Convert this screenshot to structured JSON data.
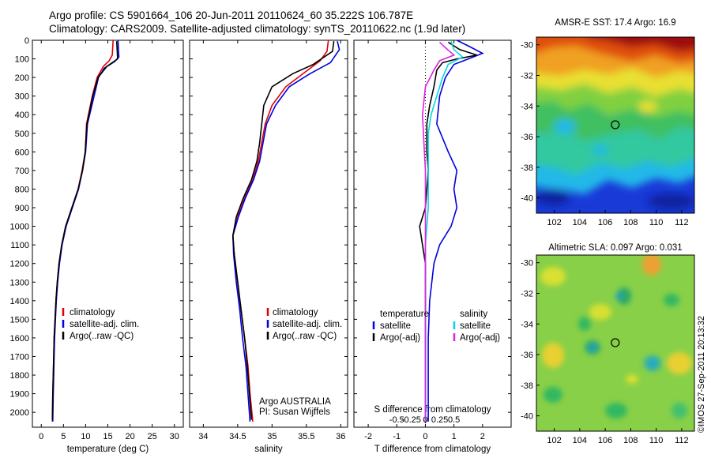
{
  "header": {
    "line1": "Argo profile: CS 5901664_106 20-Jun-2011 20110624_60 35.222S 106.787E",
    "line2": "Climatology: CARS2009. Satellite-adjusted climatology: synTS_20110622.nc (1.9d later)"
  },
  "colors": {
    "climatology": "#e00000",
    "satellite": "#0000e0",
    "argo": "#000000",
    "sat_salinity": "#00d8e0",
    "argo_salinity": "#e020e0"
  },
  "credit": "©IMOS 27-Sep-2011 20:13:32",
  "chart_data": [
    {
      "type": "line",
      "xlabel": "temperature (deg C)",
      "xlim": [
        -2,
        32
      ],
      "xticks": [
        0,
        5,
        10,
        15,
        20,
        25,
        30
      ],
      "ylim": [
        0,
        2080
      ],
      "yticks": [
        0,
        100,
        200,
        300,
        400,
        500,
        600,
        700,
        800,
        900,
        1000,
        1100,
        1200,
        1300,
        1400,
        1500,
        1600,
        1700,
        1800,
        1900,
        2000
      ],
      "legend": [
        "climatology",
        "satellite-adj. clim.",
        "Argo(..raw -QC)"
      ],
      "series": [
        {
          "name": "climatology",
          "color": "#e00000",
          "points": [
            [
              16.2,
              0
            ],
            [
              16.0,
              80
            ],
            [
              15.3,
              110
            ],
            [
              14.0,
              140
            ],
            [
              12.6,
              200
            ],
            [
              11.5,
              300
            ],
            [
              10.2,
              450
            ],
            [
              9.9,
              600
            ],
            [
              9.2,
              700
            ],
            [
              8.3,
              800
            ],
            [
              6.9,
              900
            ],
            [
              5.5,
              1000
            ],
            [
              4.6,
              1100
            ],
            [
              4.0,
              1200
            ],
            [
              3.6,
              1300
            ],
            [
              3.3,
              1400
            ],
            [
              3.1,
              1500
            ],
            [
              2.9,
              1600
            ],
            [
              2.8,
              1700
            ],
            [
              2.7,
              1800
            ],
            [
              2.6,
              1900
            ],
            [
              2.5,
              2050
            ]
          ]
        },
        {
          "name": "satellite-adj. clim.",
          "color": "#0000e0",
          "points": [
            [
              17.3,
              0
            ],
            [
              17.5,
              90
            ],
            [
              16.5,
              115
            ],
            [
              14.2,
              150
            ],
            [
              12.9,
              200
            ],
            [
              11.9,
              300
            ],
            [
              10.4,
              450
            ],
            [
              10.0,
              600
            ],
            [
              9.3,
              700
            ],
            [
              8.4,
              800
            ],
            [
              7.0,
              900
            ],
            [
              5.6,
              1000
            ],
            [
              4.7,
              1100
            ],
            [
              4.1,
              1200
            ],
            [
              3.7,
              1300
            ],
            [
              3.4,
              1400
            ],
            [
              3.2,
              1500
            ],
            [
              3.0,
              1600
            ],
            [
              2.9,
              1700
            ],
            [
              2.8,
              1800
            ],
            [
              2.7,
              1900
            ],
            [
              2.6,
              2050
            ]
          ]
        },
        {
          "name": "Argo(..raw -QC)",
          "color": "#000000",
          "points": [
            [
              17.0,
              5
            ],
            [
              17.2,
              100
            ],
            [
              14.8,
              140
            ],
            [
              12.8,
              200
            ],
            [
              11.6,
              300
            ],
            [
              10.3,
              450
            ],
            [
              9.9,
              600
            ],
            [
              9.3,
              700
            ],
            [
              8.3,
              800
            ],
            [
              6.9,
              900
            ],
            [
              5.5,
              1000
            ],
            [
              4.6,
              1100
            ],
            [
              4.0,
              1200
            ],
            [
              3.6,
              1300
            ],
            [
              3.3,
              1400
            ],
            [
              3.1,
              1500
            ],
            [
              2.9,
              1600
            ],
            [
              2.8,
              1700
            ],
            [
              2.7,
              1800
            ],
            [
              2.6,
              1900
            ],
            [
              2.5,
              2040
            ]
          ]
        }
      ]
    },
    {
      "type": "line",
      "xlabel": "salinity",
      "xlim": [
        33.8,
        36.1
      ],
      "xticks": [
        34,
        34.5,
        35,
        35.5,
        36
      ],
      "ylim": [
        0,
        2080
      ],
      "legend": [
        "climatology",
        "satellite-adj. clim.",
        "Argo(..raw -QC)"
      ],
      "annotation": [
        "Argo AUSTRALIA",
        "PI: Susan Wijffels"
      ],
      "series": [
        {
          "name": "climatology",
          "color": "#e00000",
          "points": [
            [
              35.82,
              0
            ],
            [
              35.8,
              60
            ],
            [
              35.7,
              110
            ],
            [
              35.45,
              180
            ],
            [
              35.2,
              250
            ],
            [
              35.0,
              350
            ],
            [
              34.9,
              450
            ],
            [
              34.85,
              550
            ],
            [
              34.8,
              650
            ],
            [
              34.72,
              750
            ],
            [
              34.6,
              850
            ],
            [
              34.5,
              950
            ],
            [
              34.43,
              1050
            ],
            [
              34.45,
              1150
            ],
            [
              34.5,
              1300
            ],
            [
              34.55,
              1450
            ],
            [
              34.6,
              1600
            ],
            [
              34.65,
              1750
            ],
            [
              34.68,
              1900
            ],
            [
              34.72,
              2050
            ]
          ]
        },
        {
          "name": "satellite-adj. clim.",
          "color": "#0000e0",
          "points": [
            [
              35.95,
              5
            ],
            [
              35.98,
              50
            ],
            [
              35.85,
              120
            ],
            [
              35.55,
              180
            ],
            [
              35.25,
              250
            ],
            [
              35.05,
              350
            ],
            [
              34.92,
              450
            ],
            [
              34.87,
              550
            ],
            [
              34.82,
              650
            ],
            [
              34.73,
              750
            ],
            [
              34.61,
              850
            ],
            [
              34.51,
              950
            ],
            [
              34.43,
              1050
            ],
            [
              34.44,
              1150
            ],
            [
              34.48,
              1300
            ],
            [
              34.53,
              1450
            ],
            [
              34.57,
              1600
            ],
            [
              34.62,
              1750
            ],
            [
              34.65,
              1900
            ],
            [
              34.68,
              2050
            ]
          ]
        },
        {
          "name": "Argo(..raw -QC)",
          "color": "#000000",
          "points": [
            [
              35.9,
              5
            ],
            [
              35.88,
              60
            ],
            [
              35.6,
              130
            ],
            [
              35.3,
              180
            ],
            [
              35.0,
              250
            ],
            [
              34.88,
              350
            ],
            [
              34.85,
              450
            ],
            [
              34.82,
              550
            ],
            [
              34.78,
              650
            ],
            [
              34.7,
              750
            ],
            [
              34.58,
              850
            ],
            [
              34.48,
              950
            ],
            [
              34.43,
              1050
            ],
            [
              34.45,
              1150
            ],
            [
              34.5,
              1300
            ],
            [
              34.55,
              1450
            ],
            [
              34.6,
              1600
            ],
            [
              34.64,
              1750
            ],
            [
              34.67,
              1900
            ],
            [
              34.7,
              2040
            ]
          ]
        }
      ]
    },
    {
      "type": "line",
      "xlabel": "T difference from climatology",
      "xlabel_top": "S difference from climatology",
      "xlim": [
        -2.5,
        3
      ],
      "xticks": [
        -2,
        -1,
        0,
        1,
        2
      ],
      "xticks_top": [
        {
          "value": -1,
          "label": "-0.5"
        },
        {
          "value": -0.5,
          "label": "-0.25"
        },
        {
          "value": 0,
          "label": "0"
        },
        {
          "value": 0.5,
          "label": "0.25"
        },
        {
          "value": 1,
          "label": "0.5"
        }
      ],
      "ylim": [
        0,
        2080
      ],
      "legend": {
        "temperature": {
          "title": "temperature",
          "items": [
            "satellite",
            "Argo(-adj)"
          ]
        },
        "salinity": {
          "title": "salinity",
          "items": [
            "satellite",
            "Argo(-adj)"
          ]
        }
      },
      "series": [
        {
          "name": "temperature satellite",
          "color": "#0000e0",
          "points": [
            [
              1.1,
              0
            ],
            [
              1.5,
              30
            ],
            [
              2.0,
              70
            ],
            [
              1.5,
              100
            ],
            [
              1.0,
              130
            ],
            [
              0.7,
              200
            ],
            [
              0.5,
              300
            ],
            [
              0.4,
              450
            ],
            [
              0.8,
              600
            ],
            [
              1.1,
              700
            ],
            [
              1.0,
              800
            ],
            [
              1.1,
              900
            ],
            [
              0.9,
              1000
            ],
            [
              0.5,
              1100
            ],
            [
              0.3,
              1200
            ],
            [
              0.15,
              1400
            ],
            [
              0.1,
              1600
            ],
            [
              0.1,
              1800
            ],
            [
              0.1,
              2050
            ]
          ]
        },
        {
          "name": "temperature Argo(-adj)",
          "color": "#000000",
          "points": [
            [
              0.8,
              10
            ],
            [
              1.2,
              50
            ],
            [
              1.8,
              80
            ],
            [
              1.1,
              100
            ],
            [
              0.6,
              120
            ],
            [
              0.4,
              160
            ],
            [
              0.3,
              250
            ],
            [
              0.15,
              350
            ],
            [
              0.05,
              450
            ],
            [
              0.05,
              600
            ],
            [
              0.1,
              700
            ],
            [
              0.05,
              800
            ],
            [
              0.0,
              900
            ],
            [
              -0.2,
              1000
            ],
            [
              -0.1,
              1100
            ],
            [
              0.0,
              1200
            ],
            [
              0.0,
              1400
            ],
            [
              0.0,
              1600
            ],
            [
              0.0,
              1800
            ],
            [
              0.0,
              2050
            ]
          ]
        },
        {
          "name": "salinity satellite",
          "color": "#00d8e0",
          "points": [
            [
              0.9,
              5
            ],
            [
              1.0,
              50
            ],
            [
              1.3,
              90
            ],
            [
              0.8,
              130
            ],
            [
              0.6,
              200
            ],
            [
              0.4,
              300
            ],
            [
              0.2,
              400
            ],
            [
              0.1,
              500
            ],
            [
              0.1,
              700
            ],
            [
              0.1,
              900
            ],
            [
              0.0,
              1100
            ],
            [
              0.0,
              1300
            ],
            [
              0.0,
              1600
            ],
            [
              0.0,
              1800
            ],
            [
              0.0,
              2050
            ]
          ]
        },
        {
          "name": "salinity Argo(-adj)",
          "color": "#e020e0",
          "points": [
            [
              0.5,
              10
            ],
            [
              0.7,
              40
            ],
            [
              1.0,
              80
            ],
            [
              0.5,
              110
            ],
            [
              0.3,
              160
            ],
            [
              0.0,
              250
            ],
            [
              -0.1,
              400
            ],
            [
              -0.05,
              550
            ],
            [
              0.0,
              700
            ],
            [
              0.0,
              900
            ],
            [
              0.0,
              1100
            ],
            [
              0.0,
              1300
            ],
            [
              0.0,
              1600
            ],
            [
              0.0,
              1800
            ],
            [
              0.0,
              2050
            ]
          ]
        }
      ]
    },
    {
      "type": "heatmap",
      "title": "AMSR-E SST: 17.4 Argo: 16.9",
      "xlim": [
        100.6,
        113
      ],
      "xticks": [
        102,
        104,
        106,
        108,
        110,
        112
      ],
      "ylim": [
        -41,
        -29.5
      ],
      "yticks": [
        -30,
        -32,
        -34,
        -36,
        -38,
        -40
      ],
      "marker": [
        106.787,
        -35.222
      ]
    },
    {
      "type": "heatmap",
      "title": "Altimetric SLA: 0.097 Argo: 0.031",
      "xlim": [
        100.6,
        113
      ],
      "xticks": [
        102,
        104,
        106,
        108,
        110,
        112
      ],
      "ylim": [
        -41,
        -29.5
      ],
      "yticks": [
        -30,
        -32,
        -34,
        -36,
        -38,
        -40
      ],
      "marker": [
        106.787,
        -35.222
      ]
    }
  ]
}
